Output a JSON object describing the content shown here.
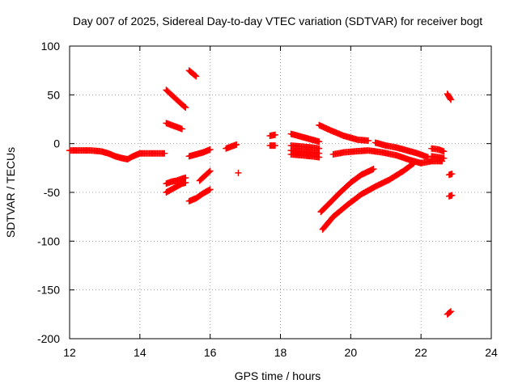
{
  "chart_data": {
    "type": "scatter",
    "title": "Day 007 of 2025, Sidereal Day-to-day VTEC variation (SDTVAR) for receiver bogt",
    "xlabel": "GPS time / hours",
    "ylabel": "SDTVAR / TECUs",
    "xlim": [
      12,
      24
    ],
    "ylim": [
      -200,
      100
    ],
    "xticks": [
      12,
      14,
      16,
      18,
      20,
      22,
      24
    ],
    "yticks": [
      100,
      50,
      0,
      -50,
      -100,
      -150,
      -200
    ],
    "grid": true,
    "marker": "+",
    "color": "#ff0000",
    "series": [
      {
        "name": "arc-1",
        "x": [
          12.0,
          12.3,
          12.6,
          12.9,
          13.1,
          13.3,
          13.5,
          13.65,
          13.8,
          14.0,
          14.3,
          14.7
        ],
        "y": [
          -7,
          -7,
          -7,
          -8,
          -10,
          -13,
          -15,
          -16,
          -13,
          -10,
          -10,
          -10
        ]
      },
      {
        "name": "arc-2",
        "x": [
          14.75,
          14.9,
          15.05,
          15.2,
          15.3
        ],
        "y": [
          55,
          50,
          45,
          40,
          37
        ]
      },
      {
        "name": "arc-3",
        "x": [
          14.75,
          14.9,
          15.05,
          15.2
        ],
        "y": [
          21,
          19,
          17,
          15
        ]
      },
      {
        "name": "arc-4",
        "x": [
          14.75,
          14.9,
          15.05,
          15.2,
          15.3
        ],
        "y": [
          -41,
          -39,
          -38,
          -36,
          -35
        ]
      },
      {
        "name": "arc-5",
        "x": [
          14.75,
          14.9,
          15.05,
          15.2,
          15.3
        ],
        "y": [
          -50,
          -47,
          -44,
          -41,
          -40
        ]
      },
      {
        "name": "arc-6",
        "x": [
          15.4,
          15.5,
          15.6
        ],
        "y": [
          75,
          72,
          69
        ]
      },
      {
        "name": "arc-7",
        "x": [
          15.4,
          15.6,
          15.8,
          16.0
        ],
        "y": [
          -13,
          -11,
          -9,
          -6
        ]
      },
      {
        "name": "arc-8",
        "x": [
          15.4,
          15.6,
          15.8,
          16.0
        ],
        "y": [
          -59,
          -56,
          -51,
          -47
        ]
      },
      {
        "name": "arc-9",
        "x": [
          15.7,
          15.85,
          16.0
        ],
        "y": [
          -38,
          -33,
          -28
        ]
      },
      {
        "name": "arc-10",
        "x": [
          16.45,
          16.6,
          16.75
        ],
        "y": [
          -5,
          -3,
          -1
        ]
      },
      {
        "name": "arc-11",
        "x": [
          16.8
        ],
        "y": [
          -30
        ]
      },
      {
        "name": "arc-12",
        "x": [
          17.7,
          17.85
        ],
        "y": [
          8,
          9
        ]
      },
      {
        "name": "arc-13",
        "x": [
          17.7,
          17.85
        ],
        "y": [
          -2,
          -2
        ]
      },
      {
        "name": "arc-14",
        "x": [
          18.3,
          18.6,
          18.9,
          19.1
        ],
        "y": [
          10,
          7,
          4,
          2
        ]
      },
      {
        "name": "arc-15",
        "x": [
          18.3,
          18.6,
          18.9,
          19.1
        ],
        "y": [
          -2,
          -3,
          -4,
          -5
        ]
      },
      {
        "name": "arc-16",
        "x": [
          18.3,
          18.6,
          18.9,
          19.1
        ],
        "y": [
          -7,
          -8,
          -9,
          -10
        ]
      },
      {
        "name": "arc-17",
        "x": [
          18.3,
          18.6,
          18.9,
          19.1
        ],
        "y": [
          -11,
          -12,
          -13,
          -14
        ]
      },
      {
        "name": "arc-18",
        "x": [
          19.1,
          19.4,
          19.8,
          20.2,
          20.5
        ],
        "y": [
          19,
          14,
          8,
          4,
          3
        ]
      },
      {
        "name": "arc-19",
        "x": [
          19.5,
          19.8,
          20.1,
          20.5,
          20.9,
          21.3,
          21.7,
          22.0
        ],
        "y": [
          -11,
          -9,
          -8,
          -7,
          -9,
          -12,
          -17,
          -20
        ]
      },
      {
        "name": "arc-20",
        "x": [
          20.7,
          21.0,
          21.3,
          21.6,
          21.9,
          22.2
        ],
        "y": [
          1,
          -2,
          -4,
          -7,
          -10,
          -14
        ]
      },
      {
        "name": "arc-21",
        "x": [
          19.15,
          19.4,
          19.7,
          20.0,
          20.3,
          20.65
        ],
        "y": [
          -70,
          -61,
          -50,
          -40,
          -32,
          -26
        ]
      },
      {
        "name": "arc-22",
        "x": [
          19.2,
          19.5,
          19.9,
          20.3,
          20.7,
          21.1,
          21.5,
          21.8
        ],
        "y": [
          -88,
          -75,
          -63,
          -52,
          -44,
          -37,
          -28,
          -20
        ]
      },
      {
        "name": "arc-23",
        "x": [
          22.0,
          22.3,
          22.6
        ],
        "y": [
          -20,
          -18,
          -18
        ]
      },
      {
        "name": "arc-24",
        "x": [
          22.3,
          22.5,
          22.65
        ],
        "y": [
          -5,
          -6,
          -8
        ]
      },
      {
        "name": "arc-25",
        "x": [
          22.3,
          22.5,
          22.65
        ],
        "y": [
          -13,
          -14,
          -15
        ]
      },
      {
        "name": "arc-26",
        "x": [
          22.75,
          22.85
        ],
        "y": [
          51,
          45
        ]
      },
      {
        "name": "arc-27",
        "x": [
          22.8,
          22.88
        ],
        "y": [
          -32,
          -31
        ]
      },
      {
        "name": "arc-28",
        "x": [
          22.8,
          22.88
        ],
        "y": [
          -54,
          -53
        ]
      },
      {
        "name": "arc-29",
        "x": [
          22.75,
          22.85
        ],
        "y": [
          -175,
          -172
        ]
      }
    ]
  }
}
